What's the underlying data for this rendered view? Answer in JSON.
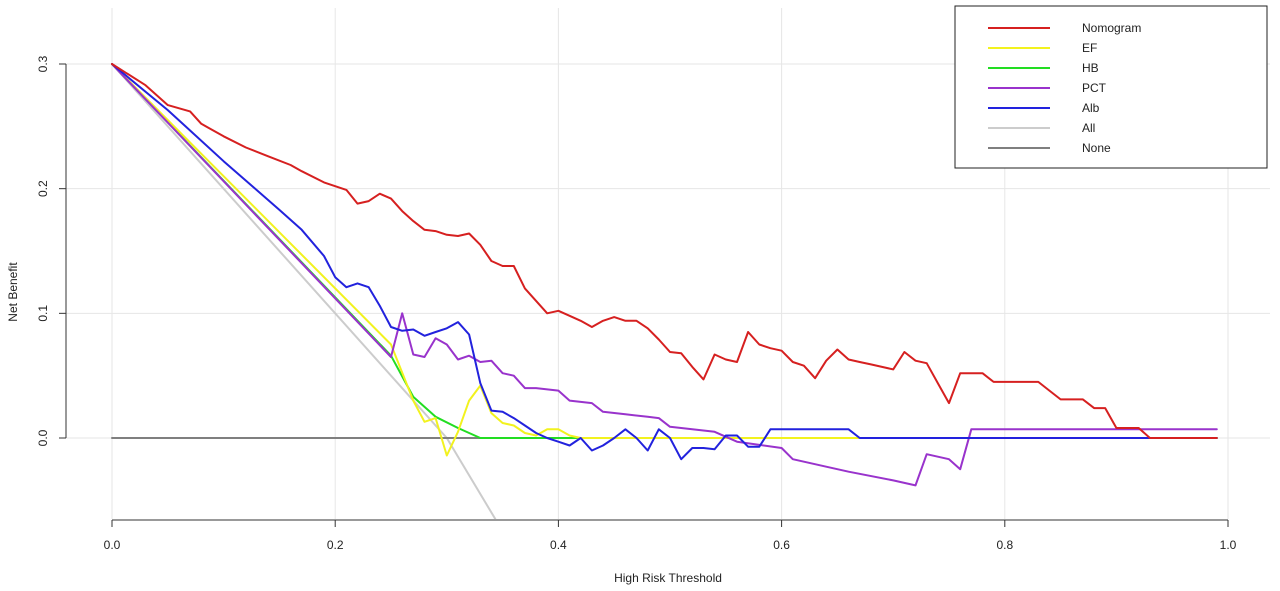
{
  "chart_data": {
    "type": "line",
    "title": "",
    "xlabel": "High Risk Threshold",
    "ylabel": "Net Benefit",
    "xlim": [
      0.0,
      1.0
    ],
    "ylim": [
      -0.065,
      0.33
    ],
    "x_ticks": [
      "0.0",
      "0.2",
      "0.4",
      "0.6",
      "0.8",
      "1.0"
    ],
    "y_ticks": [
      "0.0",
      "0.1",
      "0.2",
      "0.3"
    ],
    "grid": true,
    "legend_position": "top-right",
    "series": [
      {
        "name": "Nomogram",
        "color": "#d62020",
        "x": [
          0.0,
          0.03,
          0.05,
          0.07,
          0.08,
          0.1,
          0.12,
          0.14,
          0.16,
          0.17,
          0.19,
          0.21,
          0.22,
          0.23,
          0.24,
          0.25,
          0.26,
          0.27,
          0.28,
          0.29,
          0.3,
          0.31,
          0.32,
          0.33,
          0.34,
          0.35,
          0.36,
          0.37,
          0.38,
          0.39,
          0.4,
          0.41,
          0.42,
          0.43,
          0.44,
          0.45,
          0.46,
          0.47,
          0.48,
          0.49,
          0.5,
          0.51,
          0.52,
          0.53,
          0.54,
          0.55,
          0.56,
          0.57,
          0.58,
          0.59,
          0.6,
          0.61,
          0.62,
          0.63,
          0.64,
          0.65,
          0.66,
          0.67,
          0.68,
          0.69,
          0.7,
          0.71,
          0.72,
          0.73,
          0.74,
          0.75,
          0.76,
          0.77,
          0.78,
          0.79,
          0.8,
          0.81,
          0.82,
          0.83,
          0.84,
          0.85,
          0.86,
          0.87,
          0.88,
          0.89,
          0.9,
          0.91,
          0.92,
          0.93,
          0.99
        ],
        "y": [
          0.3,
          0.283,
          0.267,
          0.262,
          0.252,
          0.242,
          0.233,
          0.226,
          0.219,
          0.214,
          0.205,
          0.199,
          0.188,
          0.19,
          0.196,
          0.192,
          0.182,
          0.174,
          0.167,
          0.166,
          0.163,
          0.162,
          0.164,
          0.155,
          0.142,
          0.138,
          0.138,
          0.12,
          0.11,
          0.1,
          0.102,
          0.098,
          0.094,
          0.089,
          0.094,
          0.097,
          0.094,
          0.094,
          0.088,
          0.079,
          0.069,
          0.068,
          0.057,
          0.047,
          0.067,
          0.063,
          0.061,
          0.085,
          0.075,
          0.072,
          0.07,
          0.061,
          0.058,
          0.048,
          0.062,
          0.071,
          0.063,
          0.061,
          0.059,
          0.057,
          0.055,
          0.069,
          0.062,
          0.06,
          0.044,
          0.028,
          0.052,
          0.052,
          0.052,
          0.045,
          0.045,
          0.045,
          0.045,
          0.045,
          0.038,
          0.031,
          0.031,
          0.031,
          0.024,
          0.024,
          0.008,
          0.008,
          0.008,
          0.0,
          0.0
        ]
      },
      {
        "name": "EF",
        "color": "#f2f21e",
        "x": [
          0.0,
          0.25,
          0.27,
          0.28,
          0.29,
          0.3,
          0.31,
          0.32,
          0.33,
          0.34,
          0.35,
          0.36,
          0.37,
          0.38,
          0.39,
          0.4,
          0.41,
          0.42,
          0.99
        ],
        "y": [
          0.3,
          0.075,
          0.03,
          0.013,
          0.016,
          -0.014,
          0.005,
          0.03,
          0.042,
          0.02,
          0.012,
          0.01,
          0.004,
          0.002,
          0.007,
          0.007,
          0.002,
          0.0,
          0.0
        ]
      },
      {
        "name": "HB",
        "color": "#22dd22",
        "x": [
          0.0,
          0.25,
          0.27,
          0.29,
          0.31,
          0.33,
          0.99
        ],
        "y": [
          0.3,
          0.066,
          0.033,
          0.017,
          0.008,
          0.0,
          0.0
        ]
      },
      {
        "name": "PCT",
        "color": "#9933cc",
        "x": [
          0.0,
          0.25,
          0.26,
          0.27,
          0.28,
          0.29,
          0.3,
          0.31,
          0.32,
          0.33,
          0.34,
          0.35,
          0.36,
          0.37,
          0.38,
          0.4,
          0.41,
          0.43,
          0.44,
          0.46,
          0.48,
          0.49,
          0.5,
          0.52,
          0.54,
          0.56,
          0.6,
          0.61,
          0.64,
          0.66,
          0.7,
          0.72,
          0.73,
          0.75,
          0.76,
          0.77,
          0.78,
          0.99
        ],
        "y": [
          0.3,
          0.065,
          0.1,
          0.067,
          0.065,
          0.08,
          0.075,
          0.063,
          0.066,
          0.061,
          0.062,
          0.052,
          0.05,
          0.04,
          0.04,
          0.038,
          0.03,
          0.028,
          0.021,
          0.019,
          0.017,
          0.016,
          0.009,
          0.007,
          0.005,
          -0.003,
          -0.008,
          -0.017,
          -0.023,
          -0.027,
          -0.034,
          -0.038,
          -0.013,
          -0.017,
          -0.025,
          0.007,
          0.007,
          0.007
        ]
      },
      {
        "name": "Alb",
        "color": "#2222dd",
        "x": [
          0.0,
          0.05,
          0.1,
          0.15,
          0.17,
          0.19,
          0.2,
          0.21,
          0.22,
          0.23,
          0.24,
          0.25,
          0.26,
          0.27,
          0.28,
          0.29,
          0.3,
          0.31,
          0.32,
          0.33,
          0.34,
          0.35,
          0.36,
          0.37,
          0.38,
          0.39,
          0.4,
          0.41,
          0.42,
          0.43,
          0.44,
          0.45,
          0.46,
          0.47,
          0.48,
          0.49,
          0.5,
          0.51,
          0.52,
          0.53,
          0.54,
          0.55,
          0.56,
          0.57,
          0.58,
          0.59,
          0.6,
          0.62,
          0.64,
          0.66,
          0.67,
          0.99
        ],
        "y": [
          0.3,
          0.263,
          0.222,
          0.183,
          0.167,
          0.146,
          0.129,
          0.121,
          0.124,
          0.121,
          0.106,
          0.089,
          0.086,
          0.087,
          0.082,
          0.085,
          0.088,
          0.093,
          0.083,
          0.044,
          0.022,
          0.021,
          0.016,
          0.01,
          0.004,
          0.0,
          -0.003,
          -0.006,
          0.0,
          -0.01,
          -0.006,
          0.0,
          0.007,
          0.0,
          -0.01,
          0.007,
          0.0,
          -0.017,
          -0.008,
          -0.008,
          -0.009,
          0.002,
          0.002,
          -0.007,
          -0.007,
          0.007,
          0.007,
          0.007,
          0.007,
          0.007,
          0.0,
          0.0
        ]
      },
      {
        "name": "All",
        "color": "#cccccc",
        "x": [
          0.0,
          0.3,
          0.3435
        ],
        "y": [
          0.3,
          0.0,
          -0.065
        ]
      },
      {
        "name": "None",
        "color": "#7f7f7f",
        "x": [
          0.0,
          0.99
        ],
        "y": [
          0.0,
          0.0
        ]
      }
    ]
  }
}
